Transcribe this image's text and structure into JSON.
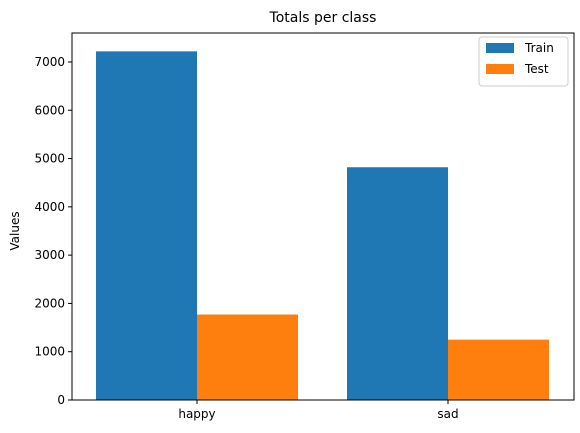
{
  "chart_data": {
    "type": "bar",
    "title": "Totals per class",
    "xlabel": "",
    "ylabel": "Values",
    "categories": [
      "happy",
      "sad"
    ],
    "series": [
      {
        "name": "Train",
        "values": [
          7220,
          4820
        ],
        "color": "#1f77b4"
      },
      {
        "name": "Test",
        "values": [
          1770,
          1250
        ],
        "color": "#ff7f0e"
      }
    ],
    "ylim": [
      0,
      7600
    ],
    "yticks": [
      "0",
      "1000",
      "2000",
      "3000",
      "4000",
      "5000",
      "6000",
      "7000"
    ],
    "legend_position": "top-right",
    "grid": false
  }
}
